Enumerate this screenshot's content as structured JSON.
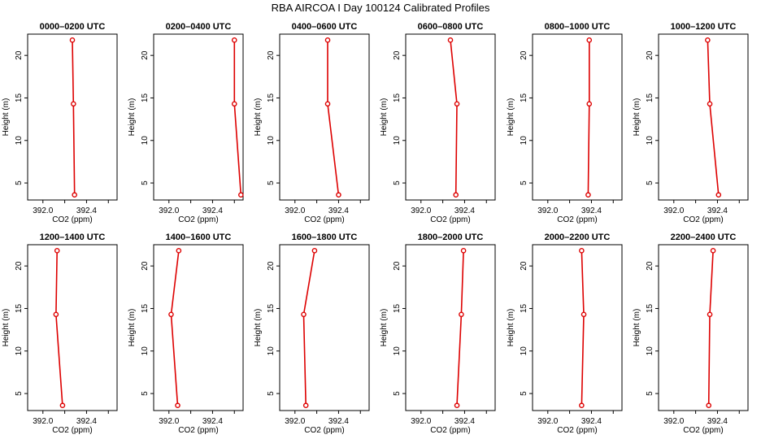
{
  "figure_title": "RBA AIRCOA I  Day 100124  Calibrated Profiles",
  "colors": {
    "line": "#dd0000",
    "axis": "#000000"
  },
  "chart_data": [
    {
      "type": "line",
      "title": "0000–0200 UTC",
      "xlabel": "CO2 (ppm)",
      "ylabel": "Height (m)",
      "xlim": [
        391.86,
        392.68
      ],
      "ylim": [
        3,
        22.5
      ],
      "xticks": [
        "392.0",
        "392.4"
      ],
      "yticks": [
        "5",
        "10",
        "15",
        "20"
      ],
      "co2": [
        392.29,
        392.28,
        392.27
      ],
      "height": [
        3.6,
        14.3,
        21.8
      ]
    },
    {
      "type": "line",
      "title": "0200–0400 UTC",
      "xlabel": "CO2 (ppm)",
      "ylabel": "Height (m)",
      "xlim": [
        391.86,
        392.68
      ],
      "ylim": [
        3,
        22.5
      ],
      "xticks": [
        "392.0",
        "392.4"
      ],
      "yticks": [
        "5",
        "10",
        "15",
        "20"
      ],
      "co2": [
        392.66,
        392.6,
        392.6
      ],
      "height": [
        3.6,
        14.3,
        21.8
      ]
    },
    {
      "type": "line",
      "title": "0400–0600 UTC",
      "xlabel": "CO2 (ppm)",
      "ylabel": "Height (m)",
      "xlim": [
        391.86,
        392.68
      ],
      "ylim": [
        3,
        22.5
      ],
      "xticks": [
        "392.0",
        "392.4"
      ],
      "yticks": [
        "5",
        "10",
        "15",
        "20"
      ],
      "co2": [
        392.4,
        392.3,
        392.3
      ],
      "height": [
        3.6,
        14.3,
        21.8
      ]
    },
    {
      "type": "line",
      "title": "0600–0800 UTC",
      "xlabel": "CO2 (ppm)",
      "ylabel": "Height (m)",
      "xlim": [
        391.86,
        392.68
      ],
      "ylim": [
        3,
        22.5
      ],
      "xticks": [
        "392.0",
        "392.4"
      ],
      "yticks": [
        "5",
        "10",
        "15",
        "20"
      ],
      "co2": [
        392.32,
        392.33,
        392.27
      ],
      "height": [
        3.6,
        14.3,
        21.8
      ]
    },
    {
      "type": "line",
      "title": "0800–1000 UTC",
      "xlabel": "CO2 (ppm)",
      "ylabel": "Height (m)",
      "xlim": [
        391.86,
        392.68
      ],
      "ylim": [
        3,
        22.5
      ],
      "xticks": [
        "392.0",
        "392.4"
      ],
      "yticks": [
        "5",
        "10",
        "15",
        "20"
      ],
      "co2": [
        392.37,
        392.38,
        392.38
      ],
      "height": [
        3.6,
        14.3,
        21.8
      ]
    },
    {
      "type": "line",
      "title": "1000–1200 UTC",
      "xlabel": "CO2 (ppm)",
      "ylabel": "Height (m)",
      "xlim": [
        391.86,
        392.68
      ],
      "ylim": [
        3,
        22.5
      ],
      "xticks": [
        "392.0",
        "392.4"
      ],
      "yticks": [
        "5",
        "10",
        "15",
        "20"
      ],
      "co2": [
        392.41,
        392.33,
        392.31
      ],
      "height": [
        3.6,
        14.3,
        21.8
      ]
    },
    {
      "type": "line",
      "title": "1200–1400 UTC",
      "xlabel": "CO2 (ppm)",
      "ylabel": "Height (m)",
      "xlim": [
        391.86,
        392.68
      ],
      "ylim": [
        3,
        22.5
      ],
      "xticks": [
        "392.0",
        "392.4"
      ],
      "yticks": [
        "5",
        "10",
        "15",
        "20"
      ],
      "co2": [
        392.18,
        392.12,
        392.13
      ],
      "height": [
        3.6,
        14.3,
        21.8
      ]
    },
    {
      "type": "line",
      "title": "1400–1600 UTC",
      "xlabel": "CO2 (ppm)",
      "ylabel": "Height (m)",
      "xlim": [
        391.86,
        392.68
      ],
      "ylim": [
        3,
        22.5
      ],
      "xticks": [
        "392.0",
        "392.4"
      ],
      "yticks": [
        "5",
        "10",
        "15",
        "20"
      ],
      "co2": [
        392.08,
        392.02,
        392.09
      ],
      "height": [
        3.6,
        14.3,
        21.8
      ]
    },
    {
      "type": "line",
      "title": "1600–1800 UTC",
      "xlabel": "CO2 (ppm)",
      "ylabel": "Height (m)",
      "xlim": [
        391.86,
        392.68
      ],
      "ylim": [
        3,
        22.5
      ],
      "xticks": [
        "392.0",
        "392.4"
      ],
      "yticks": [
        "5",
        "10",
        "15",
        "20"
      ],
      "co2": [
        392.1,
        392.08,
        392.18
      ],
      "height": [
        3.6,
        14.3,
        21.8
      ]
    },
    {
      "type": "line",
      "title": "1800–2000 UTC",
      "xlabel": "CO2 (ppm)",
      "ylabel": "Height (m)",
      "xlim": [
        391.86,
        392.68
      ],
      "ylim": [
        3,
        22.5
      ],
      "xticks": [
        "392.0",
        "392.4"
      ],
      "yticks": [
        "5",
        "10",
        "15",
        "20"
      ],
      "co2": [
        392.33,
        392.37,
        392.39
      ],
      "height": [
        3.6,
        14.3,
        21.8
      ]
    },
    {
      "type": "line",
      "title": "2000–2200 UTC",
      "xlabel": "CO2 (ppm)",
      "ylabel": "Height (m)",
      "xlim": [
        391.86,
        392.68
      ],
      "ylim": [
        3,
        22.5
      ],
      "xticks": [
        "392.0",
        "392.4"
      ],
      "yticks": [
        "5",
        "10",
        "15",
        "20"
      ],
      "co2": [
        392.31,
        392.33,
        392.31
      ],
      "height": [
        3.6,
        14.3,
        21.8
      ]
    },
    {
      "type": "line",
      "title": "2200–2400 UTC",
      "xlabel": "CO2 (ppm)",
      "ylabel": "Height (m)",
      "xlim": [
        391.86,
        392.68
      ],
      "ylim": [
        3,
        22.5
      ],
      "xticks": [
        "392.0",
        "392.4"
      ],
      "yticks": [
        "5",
        "10",
        "15",
        "20"
      ],
      "co2": [
        392.32,
        392.33,
        392.36
      ],
      "height": [
        3.6,
        14.3,
        21.8
      ]
    }
  ]
}
